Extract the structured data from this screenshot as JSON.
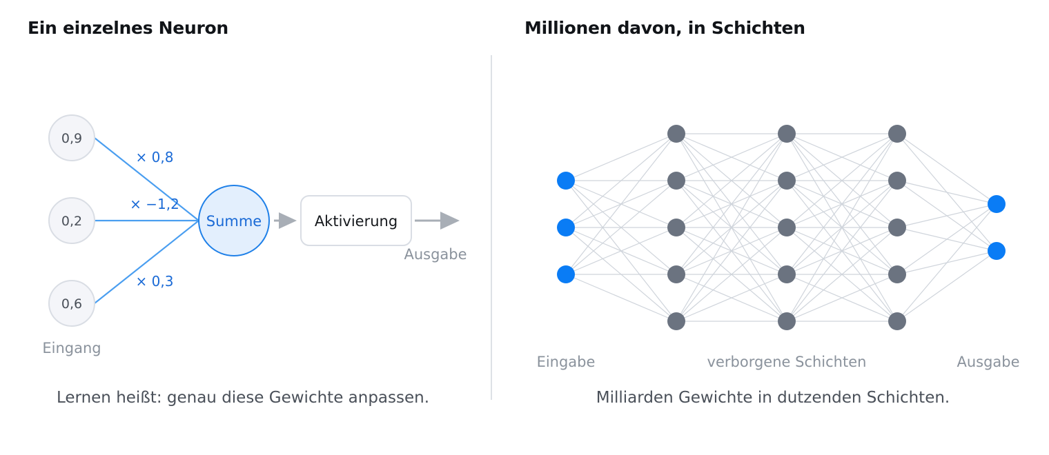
{
  "left_panel": {
    "title": "Ein einzelnes Neuron",
    "inputs": [
      {
        "value": "0,9",
        "weight": "× 0,8"
      },
      {
        "value": "0,2",
        "weight": "× −1,2"
      },
      {
        "value": "0,6",
        "weight": "× 0,3"
      }
    ],
    "inputs_label": "Eingang",
    "sum_label": "Summe",
    "activation_label": "Aktivierung",
    "output_label": "Ausgabe",
    "caption": "Lernen heißt: genau diese Gewichte anpassen."
  },
  "right_panel": {
    "title": "Millionen davon, in Schichten",
    "layers": [
      {
        "role": "input",
        "nodes": 3
      },
      {
        "role": "hidden",
        "nodes": 5
      },
      {
        "role": "hidden",
        "nodes": 5
      },
      {
        "role": "hidden",
        "nodes": 5
      },
      {
        "role": "output",
        "nodes": 2
      }
    ],
    "labels": {
      "input": "Eingabe",
      "hidden": "verborgene Schichten",
      "output": "Ausgabe"
    },
    "caption": "Milliarden Gewichte in dutzenden Schichten."
  },
  "colors": {
    "accent": "#0a7cf5",
    "weight_line": "#4a9ef0",
    "hidden_node": "#6b7380",
    "edge": "#cfd4db",
    "sum_fill": "#e3effd",
    "input_fill": "#f4f5f9",
    "arrow": "#a8aeb6",
    "divider": "#dde1e6"
  }
}
